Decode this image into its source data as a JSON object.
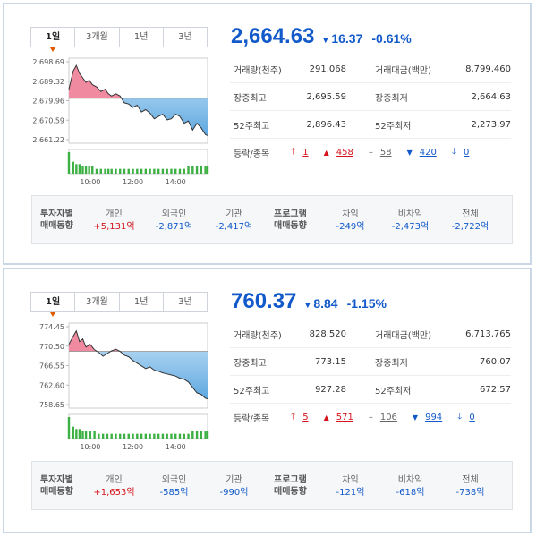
{
  "tabs": [
    "1일",
    "3개월",
    "1년",
    "3년"
  ],
  "indices": [
    {
      "price": "2,664.63",
      "change": "16.37",
      "change_rate": "-0.61%",
      "direction_icon": "down-triangle-icon",
      "colors": {
        "up": "#d4151c",
        "down": "#1259c9",
        "line": "#333333",
        "fill_up": "#f08aa0",
        "fill_down": "#5ea8e0",
        "volume": "#3cb043"
      },
      "stats": {
        "volume_label": "거래량(천주)",
        "volume": "291,068",
        "amount_label": "거래대금(백만)",
        "amount": "8,799,460",
        "high_label": "장중최고",
        "high": "2,695.59",
        "low_label": "장중최저",
        "low": "2,664.63",
        "w52_high_label": "52주최고",
        "w52_high": "2,896.43",
        "w52_low_label": "52주최저",
        "w52_low": "2,273.97",
        "updown_label": "등락/종목",
        "upper_limit": "1",
        "rise": "458",
        "flat": "58",
        "fall": "420",
        "lower_limit": "0"
      },
      "chart_data": {
        "type": "line",
        "y_ticks": [
          "2,698.69",
          "2,689.32",
          "2,679.96",
          "2,670.59",
          "2,661.22"
        ],
        "x_ticks": [
          "10:00",
          "12:00",
          "14:00"
        ],
        "ylim": [
          2661.22,
          2698.69
        ],
        "baseline": 2681.0,
        "x": [
          0,
          0.2,
          0.35,
          0.5,
          0.65,
          0.8,
          0.95,
          1.1,
          1.3,
          1.5,
          1.7,
          1.85,
          2.0,
          2.2,
          2.4,
          2.6,
          2.8,
          3.0,
          3.2,
          3.4,
          3.6,
          3.8,
          4.0,
          4.2,
          4.4,
          4.6,
          4.8,
          5.0,
          5.2,
          5.4,
          5.6,
          5.8,
          6.0,
          6.2,
          6.4,
          6.5
        ],
        "values": [
          2685,
          2693,
          2695.5,
          2692,
          2690,
          2688,
          2689,
          2687,
          2686,
          2684,
          2685,
          2683,
          2682,
          2683,
          2682,
          2679,
          2678.5,
          2677,
          2678,
          2675,
          2676,
          2674.5,
          2672,
          2673,
          2674,
          2671.5,
          2672,
          2674,
          2673,
          2670,
          2671,
          2667,
          2670,
          2668,
          2665,
          2664.63
        ],
        "volume": [
          9,
          5,
          4,
          4,
          3,
          3,
          3,
          3,
          2,
          2,
          2,
          2,
          2,
          2,
          2,
          2,
          2,
          2,
          2,
          2,
          2,
          2,
          2,
          2,
          2,
          2,
          2,
          2,
          2,
          2,
          3,
          3,
          3,
          3,
          3,
          3
        ]
      },
      "investor": {
        "head": [
          "투자자별",
          "매매동향"
        ],
        "individual_label": "개인",
        "individual": "+5,131억",
        "foreign_label": "외국인",
        "foreign": "-2,871억",
        "institution_label": "기관",
        "institution": "-2,417억",
        "program_head": [
          "프로그램",
          "매매동향"
        ],
        "arbitrage_label": "차익",
        "arbitrage": "-249억",
        "non_arbitrage_label": "비차익",
        "non_arbitrage": "-2,473억",
        "total_label": "전체",
        "total": "-2,722억"
      }
    },
    {
      "price": "760.37",
      "change": "8.84",
      "change_rate": "-1.15%",
      "direction_icon": "down-triangle-icon",
      "colors": {
        "up": "#d4151c",
        "down": "#1259c9",
        "line": "#333333",
        "fill_up": "#f08aa0",
        "fill_down": "#5ea8e0",
        "volume": "#3cb043"
      },
      "stats": {
        "volume_label": "거래량(천주)",
        "volume": "828,520",
        "amount_label": "거래대금(백만)",
        "amount": "6,713,765",
        "high_label": "장중최고",
        "high": "773.15",
        "low_label": "장중최저",
        "low": "760.07",
        "w52_high_label": "52주최고",
        "w52_high": "927.28",
        "w52_low_label": "52주최저",
        "w52_low": "672.57",
        "updown_label": "등락/종목",
        "upper_limit": "5",
        "rise": "571",
        "flat": "106",
        "fall": "994",
        "lower_limit": "0"
      },
      "chart_data": {
        "type": "line",
        "y_ticks": [
          "774.45",
          "770.50",
          "766.55",
          "762.60",
          "758.65"
        ],
        "x_ticks": [
          "10:00",
          "12:00",
          "14:00"
        ],
        "ylim": [
          758.65,
          774.45
        ],
        "baseline": 769.2,
        "x": [
          0,
          0.2,
          0.35,
          0.5,
          0.65,
          0.8,
          1.0,
          1.2,
          1.4,
          1.6,
          1.8,
          2.0,
          2.2,
          2.4,
          2.6,
          2.8,
          3.0,
          3.2,
          3.4,
          3.6,
          3.8,
          4.0,
          4.2,
          4.4,
          4.6,
          4.8,
          5.0,
          5.2,
          5.4,
          5.6,
          5.8,
          6.0,
          6.2,
          6.4,
          6.5
        ],
        "values": [
          770.5,
          772,
          773,
          771,
          771.5,
          770,
          770.5,
          769.5,
          769,
          768.3,
          768.8,
          769.3,
          769.6,
          769.2,
          768.5,
          768.2,
          767.5,
          767,
          766.5,
          766,
          766.3,
          765.7,
          765.5,
          765.2,
          765,
          764.8,
          764.6,
          764.2,
          764,
          763.5,
          762.5,
          761.5,
          761.2,
          760.5,
          760.37
        ],
        "volume": [
          9,
          5,
          4,
          4,
          3,
          3,
          3,
          3,
          2,
          2,
          2,
          2,
          2,
          2,
          2,
          2,
          2,
          2,
          2,
          2,
          2,
          2,
          2,
          2,
          2,
          2,
          2,
          2,
          2,
          2,
          3,
          3,
          3,
          3,
          3
        ]
      },
      "investor": {
        "head": [
          "투자자별",
          "매매동향"
        ],
        "individual_label": "개인",
        "individual": "+1,653억",
        "foreign_label": "외국인",
        "foreign": "-585억",
        "institution_label": "기관",
        "institution": "-990억",
        "program_head": [
          "프로그램",
          "매매동향"
        ],
        "arbitrage_label": "차익",
        "arbitrage": "-121억",
        "non_arbitrage_label": "비차익",
        "non_arbitrage": "-618억",
        "total_label": "전체",
        "total": "-738억"
      }
    }
  ]
}
